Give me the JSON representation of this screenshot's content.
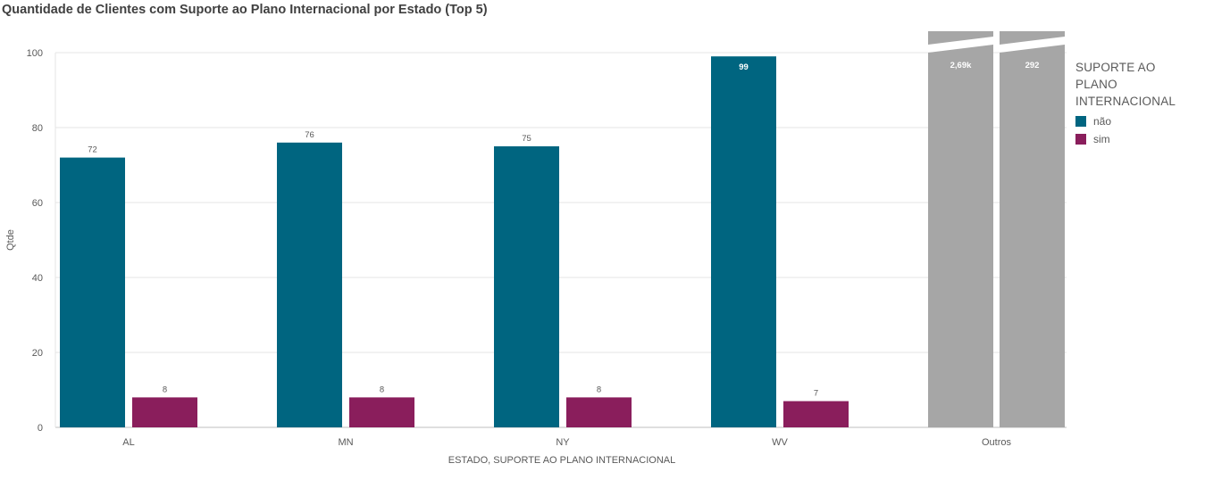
{
  "chart_data": {
    "type": "bar",
    "title": "Quantidade de Clientes com Suporte ao Plano Internacional por Estado (Top 5)",
    "xlabel": "ESTADO, SUPORTE AO PLANO INTERNACIONAL",
    "ylabel": "Qtde",
    "ylim": [
      0,
      100
    ],
    "yticks": [
      0,
      20,
      40,
      60,
      80,
      100
    ],
    "grid": true,
    "legend_position": "right",
    "categories": [
      "AL",
      "MN",
      "NY",
      "WV"
    ],
    "series": [
      {
        "name": "não",
        "color": "#006580",
        "values": [
          72,
          76,
          75,
          99
        ],
        "labels": [
          "72",
          "76",
          "75",
          "99"
        ]
      },
      {
        "name": "sim",
        "color": "#8a1e5c",
        "values": [
          8,
          8,
          8,
          7
        ],
        "labels": [
          "8",
          "8",
          "8",
          "7"
        ]
      }
    ],
    "others": {
      "category": "Outros",
      "color": "#a6a6a6",
      "values": [
        2690,
        292
      ],
      "labels": [
        "2,69k",
        "292"
      ]
    },
    "legend_title": "SUPORTE AO PLANO INTERNACIONAL"
  }
}
